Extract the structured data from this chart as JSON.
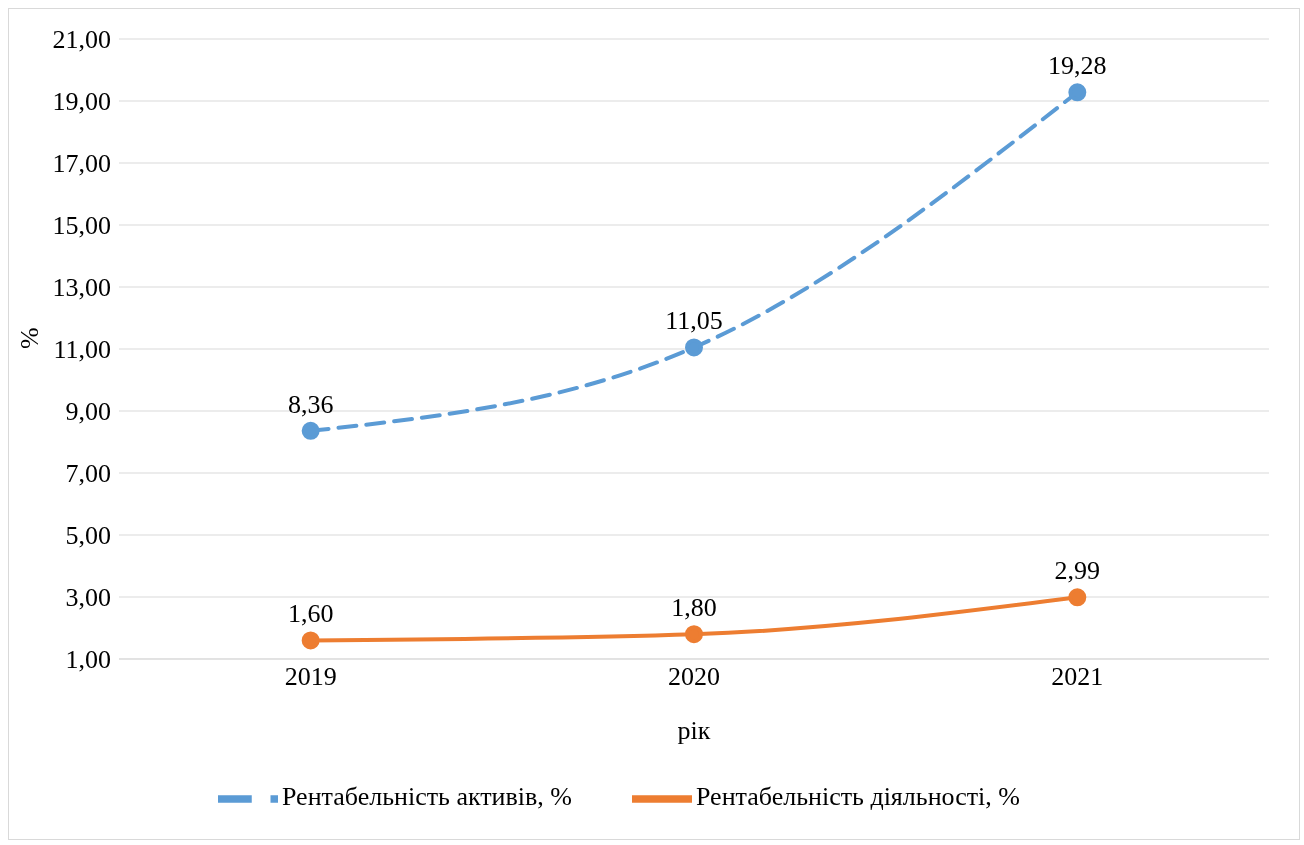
{
  "chart_data": {
    "type": "line",
    "xlabel": "рік",
    "ylabel": "%",
    "categories": [
      "2019",
      "2020",
      "2021"
    ],
    "series": [
      {
        "name": "Рентабельність активів, %",
        "color": "#5b9bd5",
        "values": [
          8.36,
          11.05,
          19.28
        ],
        "value_labels": [
          "8,36",
          "11,05",
          "19,28"
        ],
        "line_style": "dashed"
      },
      {
        "name": "Рентабельність діяльності, %",
        "color": "#ed7d31",
        "values": [
          1.6,
          1.8,
          2.99
        ],
        "value_labels": [
          "1,60",
          "1,80",
          "2,99"
        ],
        "line_style": "solid"
      }
    ],
    "ylim": [
      1,
      21
    ],
    "yticks": [
      {
        "value": 1,
        "label": "1,00"
      },
      {
        "value": 3,
        "label": "3,00"
      },
      {
        "value": 5,
        "label": "5,00"
      },
      {
        "value": 7,
        "label": "7,00"
      },
      {
        "value": 9,
        "label": "9,00"
      },
      {
        "value": 11,
        "label": "11,00"
      },
      {
        "value": 13,
        "label": "13,00"
      },
      {
        "value": 15,
        "label": "15,00"
      },
      {
        "value": 17,
        "label": "17,00"
      },
      {
        "value": 19,
        "label": "19,00"
      },
      {
        "value": 21,
        "label": "21,00"
      }
    ],
    "grid": "y",
    "legend": "bottom",
    "marker": "circle"
  }
}
